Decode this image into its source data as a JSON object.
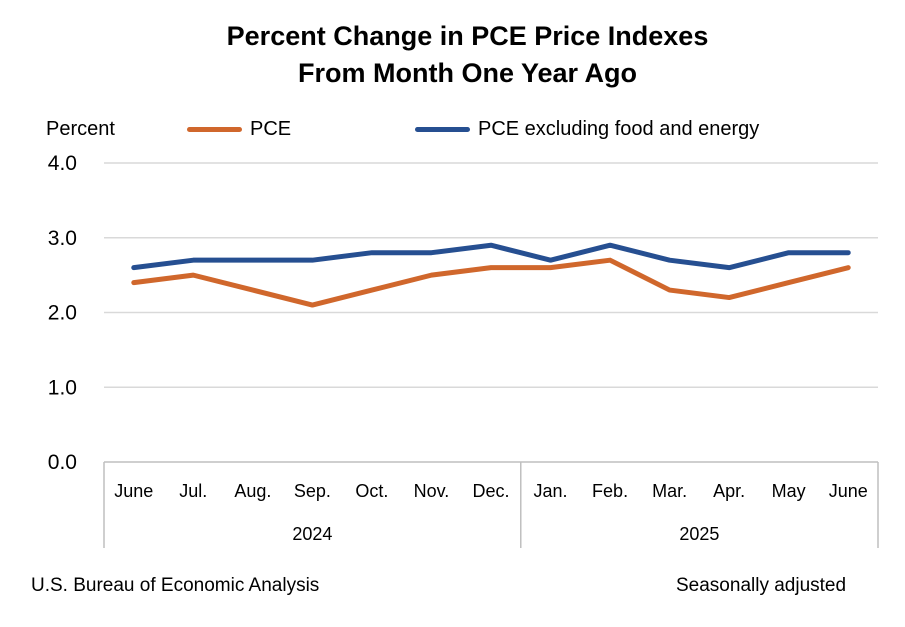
{
  "chart_data": {
    "type": "line",
    "title": [
      "Percent Change in PCE Price Indexes",
      "From Month One Year Ago"
    ],
    "ylabel": "Percent",
    "ylim": [
      0,
      4
    ],
    "yticks": [
      "0.0",
      "1.0",
      "2.0",
      "3.0",
      "4.0"
    ],
    "categories": [
      "June",
      "Jul.",
      "Aug.",
      "Sep.",
      "Oct.",
      "Nov.",
      "Dec.",
      "Jan.",
      "Feb.",
      "Mar.",
      "Apr.",
      "May",
      "June"
    ],
    "year_groups": [
      {
        "label": "2024",
        "count": 7
      },
      {
        "label": "2025",
        "count": 6
      }
    ],
    "series": [
      {
        "name": "PCE",
        "color": "#D0672C",
        "values": [
          2.4,
          2.5,
          2.3,
          2.1,
          2.3,
          2.5,
          2.6,
          2.6,
          2.7,
          2.3,
          2.2,
          2.4,
          2.6
        ]
      },
      {
        "name": "PCE excluding food and energy",
        "color": "#264F91",
        "values": [
          2.6,
          2.7,
          2.7,
          2.7,
          2.8,
          2.8,
          2.9,
          2.7,
          2.9,
          2.7,
          2.6,
          2.8,
          2.8
        ]
      }
    ],
    "grid": true,
    "legend": "top"
  },
  "footer": {
    "source": "U.S. Bureau of Economic Analysis",
    "note": "Seasonally adjusted"
  }
}
